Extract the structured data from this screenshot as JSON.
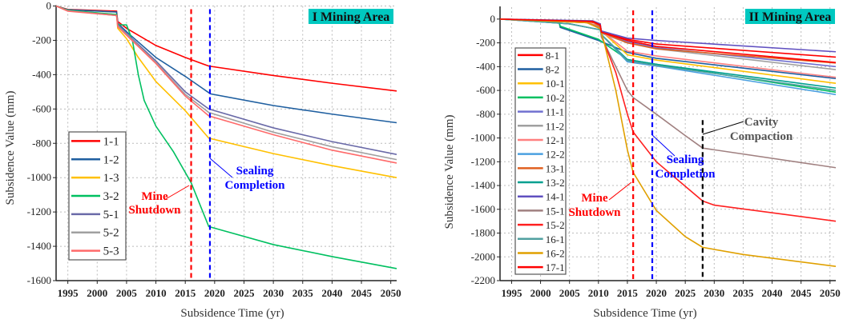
{
  "chart_data": [
    {
      "type": "line",
      "title": "I Mining Area",
      "xlabel": "Subsidence Time (yr)",
      "ylabel": "Subsidence Value (mm)",
      "xlim": [
        1993,
        2051
      ],
      "ylim": [
        -1600,
        0
      ],
      "xticks": [
        1995,
        2000,
        2005,
        2010,
        2015,
        2020,
        2025,
        2030,
        2035,
        2040,
        2045,
        2050
      ],
      "yticks": [
        0,
        -200,
        -400,
        -600,
        -800,
        -1000,
        -1200,
        -1400,
        -1600
      ],
      "grid": true,
      "legend_position": "left",
      "title_color": "#00c8c0",
      "vlines": [
        {
          "x": 2016,
          "color": "#ff0000"
        },
        {
          "x": 2019.2,
          "color": "#0000ff"
        }
      ],
      "annotations": [
        {
          "text": [
            "Mine",
            "Shutdown"
          ],
          "color": "#ff0000"
        },
        {
          "text": [
            "Sealing",
            "Completion"
          ],
          "color": "#0000ff"
        }
      ],
      "series": [
        {
          "name": "1-1",
          "color": "#ff0000",
          "x": [
            1993,
            1995,
            2003.3,
            2003.5,
            2005,
            2010,
            2015,
            2019,
            2030,
            2040,
            2051
          ],
          "y": [
            0,
            -20,
            -30,
            -90,
            -130,
            -230,
            -300,
            -350,
            -405,
            -450,
            -495
          ]
        },
        {
          "name": "1-2",
          "color": "#1f5fa0",
          "x": [
            1993,
            1995,
            2003.3,
            2003.5,
            2005,
            2010,
            2015,
            2019,
            2019.3,
            2030,
            2040,
            2051
          ],
          "y": [
            0,
            -22,
            -35,
            -100,
            -150,
            -300,
            -410,
            -505,
            -512,
            -580,
            -630,
            -680
          ]
        },
        {
          "name": "1-3",
          "color": "#ffc000",
          "x": [
            1993,
            1995,
            2003.3,
            2003.5,
            2005,
            2007,
            2010,
            2015,
            2019,
            2030,
            2040,
            2051
          ],
          "y": [
            0,
            -25,
            -50,
            -130,
            -190,
            -300,
            -440,
            -610,
            -770,
            -860,
            -930,
            -1000
          ]
        },
        {
          "name": "3-2",
          "color": "#00c060",
          "x": [
            1993,
            1995,
            2003.3,
            2003.5,
            2005,
            2006,
            2007,
            2008,
            2010,
            2013,
            2016,
            2019,
            2030,
            2040,
            2051
          ],
          "y": [
            0,
            -25,
            -50,
            -110,
            -110,
            -200,
            -400,
            -550,
            -700,
            -850,
            -1030,
            -1285,
            -1390,
            -1460,
            -1530
          ]
        },
        {
          "name": "5-1",
          "color": "#6a6aa8",
          "x": [
            1993,
            1995,
            2003.3,
            2003.5,
            2005,
            2010,
            2015,
            2019,
            2030,
            2040,
            2051
          ],
          "y": [
            0,
            -28,
            -55,
            -110,
            -160,
            -320,
            -500,
            -600,
            -710,
            -790,
            -865
          ]
        },
        {
          "name": "5-2",
          "color": "#a0a0a0",
          "x": [
            1993,
            1995,
            2003.3,
            2003.5,
            2005,
            2010,
            2015,
            2019,
            2030,
            2040,
            2051
          ],
          "y": [
            0,
            -28,
            -55,
            -115,
            -165,
            -330,
            -515,
            -620,
            -735,
            -820,
            -895
          ]
        },
        {
          "name": "5-3",
          "color": "#ff6a6a",
          "x": [
            1993,
            1995,
            2003.3,
            2003.5,
            2005,
            2010,
            2015,
            2019,
            2030,
            2040,
            2051
          ],
          "y": [
            0,
            -30,
            -55,
            -120,
            -170,
            -335,
            -525,
            -640,
            -750,
            -840,
            -915
          ]
        }
      ]
    },
    {
      "type": "line",
      "title": "II Mining Area",
      "xlabel": "Subsidence Time (yr)",
      "ylabel": "Subsidence Value (mm)",
      "xlim": [
        1993,
        2051
      ],
      "ylim": [
        -2200,
        100
      ],
      "xticks": [
        1995,
        2000,
        2005,
        2010,
        2015,
        2020,
        2025,
        2030,
        2035,
        2040,
        2045,
        2050
      ],
      "yticks": [
        0,
        -200,
        -400,
        -600,
        -800,
        -1000,
        -1200,
        -1400,
        -1600,
        -1800,
        -2000,
        -2200
      ],
      "grid": true,
      "legend_position": "left",
      "title_color": "#00c8c0",
      "vlines": [
        {
          "x": 2016,
          "color": "#ff0000"
        },
        {
          "x": 2019.3,
          "color": "#0000ff"
        },
        {
          "x": 2028,
          "color": "#000000"
        }
      ],
      "annotations": [
        {
          "text": [
            "Mine",
            "Shutdown"
          ],
          "color": "#ff0000"
        },
        {
          "text": [
            "Sealing",
            "Completion"
          ],
          "color": "#0000ff"
        },
        {
          "text": [
            "Cavity",
            "Compaction"
          ],
          "color": "#555555"
        }
      ],
      "series": [
        {
          "name": "8-1",
          "color": "#ff0000",
          "x": [
            1993,
            2008,
            2010.3,
            2010.5,
            2015,
            2020,
            2051
          ],
          "y": [
            0,
            -20,
            -40,
            -100,
            -170,
            -210,
            -320
          ]
        },
        {
          "name": "8-2",
          "color": "#1f5fa0",
          "x": [
            1993,
            2003.2,
            2003.4,
            2010,
            2015,
            2020,
            2051
          ],
          "y": [
            0,
            -25,
            -70,
            -180,
            -280,
            -330,
            -500
          ]
        },
        {
          "name": "10-1",
          "color": "#ffc000",
          "x": [
            1993,
            2008,
            2010.3,
            2010.5,
            2015,
            2020,
            2051
          ],
          "y": [
            0,
            -30,
            -60,
            -100,
            -300,
            -345,
            -540
          ]
        },
        {
          "name": "10-2",
          "color": "#00c060",
          "x": [
            1993,
            2003.2,
            2003.4,
            2010,
            2015,
            2020,
            2051
          ],
          "y": [
            0,
            -25,
            -60,
            -170,
            -340,
            -380,
            -615
          ]
        },
        {
          "name": "11-1",
          "color": "#7070d0",
          "x": [
            1993,
            2009,
            2010.3,
            2010.5,
            2015,
            2020,
            2051
          ],
          "y": [
            0,
            -20,
            -50,
            -120,
            -190,
            -240,
            -400
          ]
        },
        {
          "name": "11-2",
          "color": "#a0a0a0",
          "x": [
            1993,
            2009,
            2010.3,
            2010.5,
            2015,
            2020,
            2051
          ],
          "y": [
            0,
            -20,
            -50,
            -120,
            -200,
            -250,
            -425
          ]
        },
        {
          "name": "12-1",
          "color": "#ff8080",
          "x": [
            1993,
            2008,
            2010.3,
            2010.5,
            2015,
            2020,
            2051
          ],
          "y": [
            0,
            -30,
            -60,
            -100,
            -270,
            -310,
            -490
          ]
        },
        {
          "name": "12-2",
          "color": "#4aa0e0",
          "x": [
            1993,
            2005,
            2010.3,
            2010.5,
            2015,
            2020,
            2051
          ],
          "y": [
            0,
            -40,
            -90,
            -130,
            -360,
            -395,
            -635
          ]
        },
        {
          "name": "13-1",
          "color": "#e06020",
          "x": [
            1993,
            2009,
            2010.3,
            2010.5,
            2015,
            2020,
            2051
          ],
          "y": [
            0,
            -25,
            -60,
            -110,
            -200,
            -250,
            -370
          ]
        },
        {
          "name": "13-2",
          "color": "#00a090",
          "x": [
            1993,
            2005,
            2010.3,
            2010.5,
            2015,
            2020,
            2051
          ],
          "y": [
            0,
            -40,
            -90,
            -130,
            -340,
            -380,
            -580
          ]
        },
        {
          "name": "14-1",
          "color": "#6050c0",
          "x": [
            1993,
            2009,
            2010.3,
            2010.5,
            2015,
            2020,
            2051
          ],
          "y": [
            0,
            -15,
            -40,
            -100,
            -160,
            -180,
            -275
          ]
        },
        {
          "name": "15-1",
          "color": "#a08080",
          "x": [
            1993,
            2008,
            2010.3,
            2010.5,
            2012,
            2015,
            2016,
            2020,
            2025,
            2028,
            2051
          ],
          "y": [
            0,
            -30,
            -70,
            -150,
            -300,
            -600,
            -660,
            -800,
            -980,
            -1085,
            -1250
          ]
        },
        {
          "name": "15-2",
          "color": "#ff2020",
          "x": [
            1993,
            2008,
            2010.3,
            2011,
            2013,
            2015,
            2016,
            2020,
            2028,
            2030,
            2051
          ],
          "y": [
            0,
            -30,
            -80,
            -200,
            -450,
            -800,
            -950,
            -1200,
            -1530,
            -1565,
            -1700
          ]
        },
        {
          "name": "16-1",
          "color": "#50a0a0",
          "x": [
            1993,
            2005,
            2010.3,
            2010.5,
            2015,
            2020,
            2051
          ],
          "y": [
            0,
            -40,
            -90,
            -130,
            -350,
            -390,
            -600
          ]
        },
        {
          "name": "16-2",
          "color": "#e0a000",
          "x": [
            1993,
            2008,
            2010.3,
            2011,
            2013,
            2015,
            2016,
            2018,
            2020,
            2025,
            2028,
            2035,
            2051
          ],
          "y": [
            0,
            -30,
            -80,
            -200,
            -600,
            -1100,
            -1290,
            -1450,
            -1610,
            -1830,
            -1920,
            -1980,
            -2080
          ]
        },
        {
          "name": "17-1",
          "color": "#ff0000",
          "x": [
            1993,
            2009,
            2010.3,
            2010.5,
            2015,
            2020,
            2051
          ],
          "y": [
            0,
            -20,
            -50,
            -110,
            -180,
            -230,
            -365
          ]
        }
      ]
    }
  ]
}
